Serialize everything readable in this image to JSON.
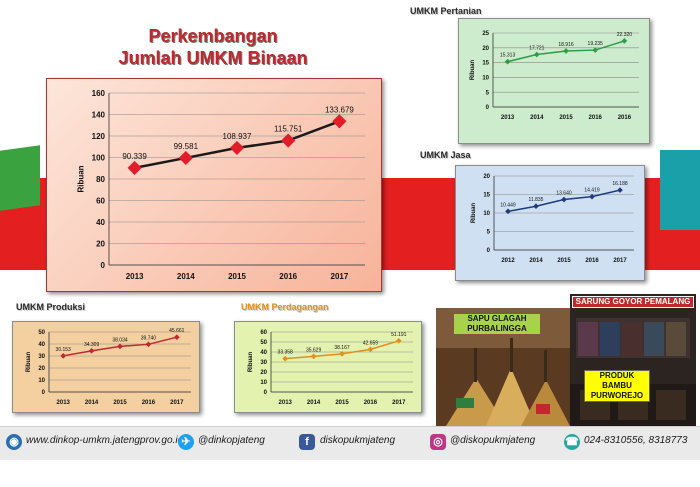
{
  "title": {
    "line1": "Perkembangan",
    "line2": "Jumlah UMKM Binaan"
  },
  "charts": {
    "pertanian": {
      "title": "UMKM Pertanian"
    },
    "jasa": {
      "title": "UMKM Jasa"
    },
    "produksi": {
      "title": "UMKM Produksi"
    },
    "perdagangan": {
      "title": "UMKM Perdagangan"
    }
  },
  "photos": {
    "sapu": {
      "label": "SAPU GLAGAH PURBALINGGA"
    },
    "sarung": {
      "label": "SARUNG GOYOR PEMALANG"
    },
    "bambu": {
      "label": "PRODUK BAMBU PURWOREJO"
    }
  },
  "footer": {
    "website": "www.dinkop-umkm.jatengprov.go.id",
    "twitter": "@dinkopjateng",
    "facebook": "diskopukmjateng",
    "instagram": "@diskopukmjateng",
    "phone": "024-8310556, 8318773"
  },
  "colors": {
    "accent_red": "#e41f20",
    "title_red": "#c0282d"
  },
  "chart_data": [
    {
      "id": "main",
      "type": "line",
      "title": "Perkembangan Jumlah UMKM Binaan",
      "categories": [
        "2013",
        "2014",
        "2015",
        "2016",
        "2017"
      ],
      "series": [
        {
          "values": [
            90.339,
            99.581,
            108.937,
            115.751,
            133.679
          ]
        }
      ],
      "data_labels": [
        "90.339",
        "99.581",
        "108.937",
        "115.751",
        "133.679"
      ],
      "ylabel": "Ribuan",
      "ylim": [
        0,
        160
      ],
      "yticks": [
        0,
        20,
        40,
        60,
        80,
        100,
        120,
        140,
        160
      ],
      "line_color": "#1a1a1a",
      "marker_color": "#e11d2a",
      "grid": true
    },
    {
      "id": "pertanian",
      "type": "line",
      "title": "UMKM Pertanian",
      "categories": [
        "2013",
        "2014",
        "2015",
        "2016",
        "2016"
      ],
      "series": [
        {
          "values": [
            15.313,
            17.721,
            18.916,
            19.235,
            22.32
          ]
        }
      ],
      "data_labels": [
        "15.313",
        "17.721",
        "18.916",
        "19.235",
        "22.320"
      ],
      "ylabel": "Ribuan",
      "ylim": [
        0,
        25
      ],
      "yticks": [
        0,
        5,
        10,
        15,
        20,
        25
      ],
      "line_color": "#2e9c46",
      "grid": true
    },
    {
      "id": "jasa",
      "type": "line",
      "title": "UMKM Jasa",
      "categories": [
        "2012",
        "2014",
        "2015",
        "2016",
        "2017"
      ],
      "series": [
        {
          "values": [
            10.449,
            11.835,
            13.64,
            14.419,
            16.188
          ]
        }
      ],
      "data_labels": [
        "10.449",
        "11.835",
        "13.640",
        "14.419",
        "16.188"
      ],
      "ylabel": "Ribuan",
      "ylim": [
        0,
        20
      ],
      "yticks": [
        0,
        5,
        10,
        15,
        20
      ],
      "line_color": "#1f3b7a",
      "grid": true
    },
    {
      "id": "produksi",
      "type": "line",
      "title": "UMKM Produksi",
      "categories": [
        "2013",
        "2014",
        "2015",
        "2016",
        "2017"
      ],
      "series": [
        {
          "values": [
            30.153,
            34.309,
            38.034,
            39.74,
            45.661
          ]
        }
      ],
      "data_labels": [
        "30.153",
        "34.309",
        "38.034",
        "39.740",
        "45.661"
      ],
      "ylabel": "Ribuan",
      "ylim": [
        0,
        50
      ],
      "yticks": [
        0,
        10,
        20,
        30,
        40,
        50
      ],
      "line_color": "#c0282d",
      "grid": true
    },
    {
      "id": "perdagangan",
      "type": "line",
      "title": "UMKM Perdagangan",
      "categories": [
        "2013",
        "2014",
        "2015",
        "2016",
        "2017"
      ],
      "series": [
        {
          "values": [
            33.358,
            35.629,
            38.167,
            42.659,
            51.191
          ]
        }
      ],
      "data_labels": [
        "33.358",
        "35.629",
        "38.167",
        "42.659",
        "51.191"
      ],
      "ylabel": "Ribuan",
      "ylim": [
        0,
        60
      ],
      "yticks": [
        0,
        10,
        20,
        30,
        40,
        50,
        60
      ],
      "line_color": "#e58e1a",
      "grid": true
    }
  ]
}
